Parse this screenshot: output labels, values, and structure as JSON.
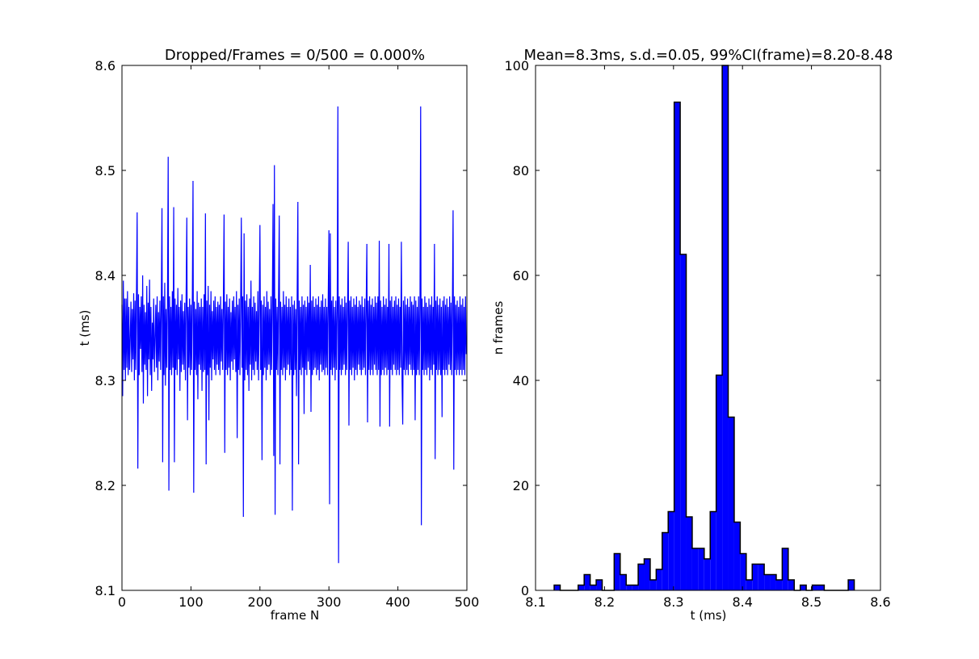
{
  "chart_data": [
    {
      "type": "line",
      "title": "Dropped/Frames = 0/500 = 0.000%",
      "xlabel": "frame N",
      "ylabel": "t (ms)",
      "xlim": [
        0,
        500
      ],
      "ylim": [
        8.1,
        8.6
      ],
      "xticks": [
        "0",
        "100",
        "200",
        "300",
        "400",
        "500"
      ],
      "yticks": [
        "8.1",
        "8.2",
        "8.3",
        "8.4",
        "8.5",
        "8.6"
      ],
      "color": "#0000ff",
      "grid": false,
      "y": [
        8.372,
        8.285,
        8.395,
        8.31,
        8.378,
        8.3,
        8.378,
        8.312,
        8.385,
        8.305,
        8.37,
        8.31,
        8.34,
        8.375,
        8.308,
        8.368,
        8.32,
        8.383,
        8.3,
        8.376,
        8.31,
        8.38,
        8.46,
        8.216,
        8.382,
        8.305,
        8.37,
        8.33,
        8.38,
        8.308,
        8.4,
        8.278,
        8.372,
        8.315,
        8.365,
        8.31,
        8.39,
        8.285,
        8.374,
        8.32,
        8.396,
        8.305,
        8.37,
        8.29,
        8.355,
        8.32,
        8.378,
        8.308,
        8.34,
        8.372,
        8.312,
        8.38,
        8.3,
        8.365,
        8.318,
        8.376,
        8.31,
        8.372,
        8.464,
        8.222,
        8.38,
        8.305,
        8.393,
        8.295,
        8.368,
        8.312,
        8.374,
        8.513,
        8.195,
        8.38,
        8.31,
        8.37,
        8.305,
        8.385,
        8.312,
        8.465,
        8.222,
        8.378,
        8.31,
        8.372,
        8.305,
        8.388,
        8.32,
        8.37,
        8.29,
        8.376,
        8.308,
        8.382,
        8.315,
        8.366,
        8.31,
        8.374,
        8.3,
        8.38,
        8.455,
        8.262,
        8.37,
        8.312,
        8.378,
        8.305,
        8.372,
        8.31,
        8.38,
        8.49,
        8.193,
        8.375,
        8.31,
        8.368,
        8.305,
        8.385,
        8.282,
        8.374,
        8.315,
        8.37,
        8.31,
        8.378,
        8.29,
        8.37,
        8.308,
        8.382,
        8.31,
        8.459,
        8.22,
        8.376,
        8.305,
        8.39,
        8.262,
        8.372,
        8.312,
        8.385,
        8.3,
        8.366,
        8.32,
        8.376,
        8.31,
        8.38,
        8.305,
        8.37,
        8.315,
        8.375,
        8.31,
        8.372,
        8.305,
        8.38,
        8.318,
        8.368,
        8.31,
        8.376,
        8.458,
        8.231,
        8.375,
        8.31,
        8.382,
        8.305,
        8.37,
        8.312,
        8.378,
        8.3,
        8.365,
        8.318,
        8.376,
        8.31,
        8.38,
        8.32,
        8.37,
        8.308,
        8.385,
        8.245,
        8.372,
        8.31,
        8.378,
        8.305,
        8.37,
        8.455,
        8.312,
        8.38,
        8.17,
        8.44,
        8.3,
        8.376,
        8.31,
        8.382,
        8.305,
        8.37,
        8.29,
        8.378,
        8.315,
        8.395,
        8.3,
        8.37,
        8.31,
        8.38,
        8.305,
        8.374,
        8.318,
        8.366,
        8.31,
        8.385,
        8.3,
        8.37,
        8.448,
        8.31,
        8.376,
        8.224,
        8.372,
        8.305,
        8.38,
        8.312,
        8.37,
        8.3,
        8.385,
        8.31,
        8.375,
        8.315,
        8.368,
        8.305,
        8.38,
        8.31,
        8.376,
        8.468,
        8.228,
        8.505,
        8.172,
        8.378,
        8.31,
        8.37,
        8.305,
        8.38,
        8.457,
        8.22,
        8.375,
        8.31,
        8.37,
        8.305,
        8.385,
        8.312,
        8.372,
        8.3,
        8.38,
        8.31,
        8.37,
        8.315,
        8.378,
        8.305,
        8.37,
        8.31,
        8.38,
        8.176,
        8.372,
        8.305,
        8.376,
        8.31,
        8.368,
        8.285,
        8.385,
        8.47,
        8.22,
        8.376,
        8.31,
        8.37,
        8.305,
        8.38,
        8.312,
        8.372,
        8.268,
        8.376,
        8.31,
        8.37,
        8.305,
        8.38,
        8.318,
        8.374,
        8.31,
        8.41,
        8.27,
        8.376,
        8.305,
        8.38,
        8.31,
        8.37,
        8.312,
        8.378,
        8.305,
        8.372,
        8.31,
        8.38,
        8.3,
        8.37,
        8.315,
        8.376,
        8.308,
        8.382,
        8.31,
        8.37,
        8.305,
        8.378,
        8.312,
        8.37,
        8.305,
        8.38,
        8.443,
        8.182,
        8.44,
        8.31,
        8.376,
        8.305,
        8.38,
        8.312,
        8.37,
        8.3,
        8.376,
        8.31,
        8.37,
        8.561,
        8.126,
        8.38,
        8.31,
        8.372,
        8.305,
        8.378,
        8.31,
        8.37,
        8.315,
        8.38,
        8.305,
        8.374,
        8.31,
        8.368,
        8.432,
        8.257,
        8.376,
        8.31,
        8.38,
        8.305,
        8.37,
        8.312,
        8.378,
        8.3,
        8.372,
        8.31,
        8.38,
        8.305,
        8.37,
        8.315,
        8.376,
        8.31,
        8.372,
        8.305,
        8.38,
        8.31,
        8.37,
        8.312,
        8.378,
        8.305,
        8.37,
        8.43,
        8.26,
        8.376,
        8.31,
        8.38,
        8.305,
        8.372,
        8.31,
        8.378,
        8.305,
        8.37,
        8.315,
        8.38,
        8.31,
        8.374,
        8.305,
        8.38,
        8.31,
        8.433,
        8.256,
        8.376,
        8.305,
        8.37,
        8.31,
        8.38,
        8.305,
        8.372,
        8.312,
        8.378,
        8.305,
        8.37,
        8.31,
        8.43,
        8.256,
        8.376,
        8.31,
        8.38,
        8.305,
        8.37,
        8.315,
        8.376,
        8.31,
        8.38,
        8.305,
        8.372,
        8.31,
        8.378,
        8.305,
        8.37,
        8.312,
        8.432,
        8.3,
        8.258,
        8.376,
        8.31,
        8.38,
        8.305,
        8.372,
        8.31,
        8.378,
        8.305,
        8.37,
        8.315,
        8.38,
        8.31,
        8.375,
        8.305,
        8.372,
        8.31,
        8.38,
        8.262,
        8.376,
        8.305,
        8.37,
        8.31,
        8.38,
        8.305,
        8.372,
        8.561,
        8.162,
        8.378,
        8.31,
        8.37,
        8.305,
        8.38,
        8.31,
        8.374,
        8.305,
        8.37,
        8.312,
        8.378,
        8.3,
        8.372,
        8.31,
        8.38,
        8.305,
        8.37,
        8.315,
        8.43,
        8.225,
        8.376,
        8.31,
        8.38,
        8.305,
        8.372,
        8.31,
        8.378,
        8.305,
        8.37,
        8.265,
        8.376,
        8.31,
        8.38,
        8.305,
        8.372,
        8.31,
        8.378,
        8.305,
        8.37,
        8.315,
        8.38,
        8.31,
        8.374,
        8.305,
        8.37,
        8.462,
        8.215,
        8.38,
        8.31,
        8.372,
        8.305,
        8.376,
        8.31,
        8.37,
        8.305,
        8.38,
        8.31,
        8.372,
        8.305,
        8.378,
        8.31,
        8.37,
        8.305,
        8.38,
        8.325
      ]
    },
    {
      "type": "bar",
      "subtype": "histogram",
      "title": "Mean=8.3ms, s.d.=0.05, 99%CI(frame)=8.20-8.48",
      "xlabel": "t (ms)",
      "ylabel": "n frames",
      "xlim": [
        8.1,
        8.6
      ],
      "ylim": [
        0,
        100
      ],
      "xticks": [
        "8.1",
        "8.2",
        "8.3",
        "8.4",
        "8.5",
        "8.6"
      ],
      "yticks": [
        "0",
        "20",
        "40",
        "60",
        "80",
        "100"
      ],
      "color": "#0000ff",
      "edgecolor": "#000000",
      "grid": false,
      "bin_start": 8.127,
      "bin_width": 0.0087,
      "counts": [
        1,
        0,
        0,
        0,
        1,
        3,
        1,
        2,
        0,
        0,
        7,
        3,
        1,
        1,
        5,
        6,
        2,
        4,
        11,
        15,
        93,
        64,
        14,
        8,
        8,
        6,
        15,
        41,
        100,
        33,
        13,
        7,
        2,
        5,
        5,
        3,
        3,
        2,
        8,
        2,
        0,
        1,
        0,
        1,
        1,
        0,
        0,
        0,
        0,
        2
      ]
    }
  ]
}
